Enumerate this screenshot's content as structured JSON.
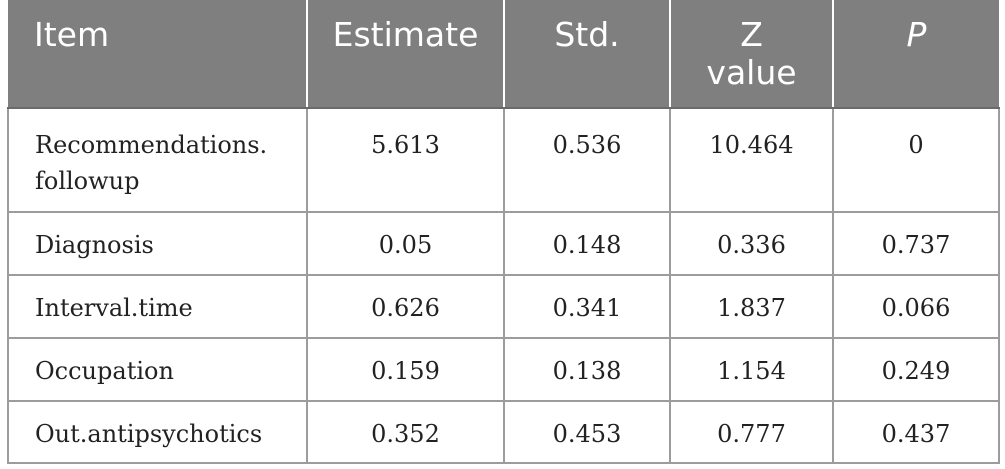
{
  "table": {
    "headers": {
      "item": "Item",
      "estimate": "Estimate",
      "std": "Std.",
      "z_line1": "Z",
      "z_line2": "value",
      "p": "P"
    },
    "rows": [
      {
        "item_line1": "Recommendations.",
        "item_line2": "followup",
        "estimate": "5.613",
        "std": "0.536",
        "z": "10.464",
        "p": "0"
      },
      {
        "item": "Diagnosis",
        "estimate": "0.05",
        "std": "0.148",
        "z": "0.336",
        "p": "0.737"
      },
      {
        "item": "Interval.time",
        "estimate": "0.626",
        "std": "0.341",
        "z": "1.837",
        "p": "0.066"
      },
      {
        "item": "Occupation",
        "estimate": "0.159",
        "std": "0.138",
        "z": "1.154",
        "p": "0.249"
      },
      {
        "item": "Out.antipsychotics",
        "estimate": "0.352",
        "std": "0.453",
        "z": "0.777",
        "p": "0.437"
      }
    ]
  }
}
